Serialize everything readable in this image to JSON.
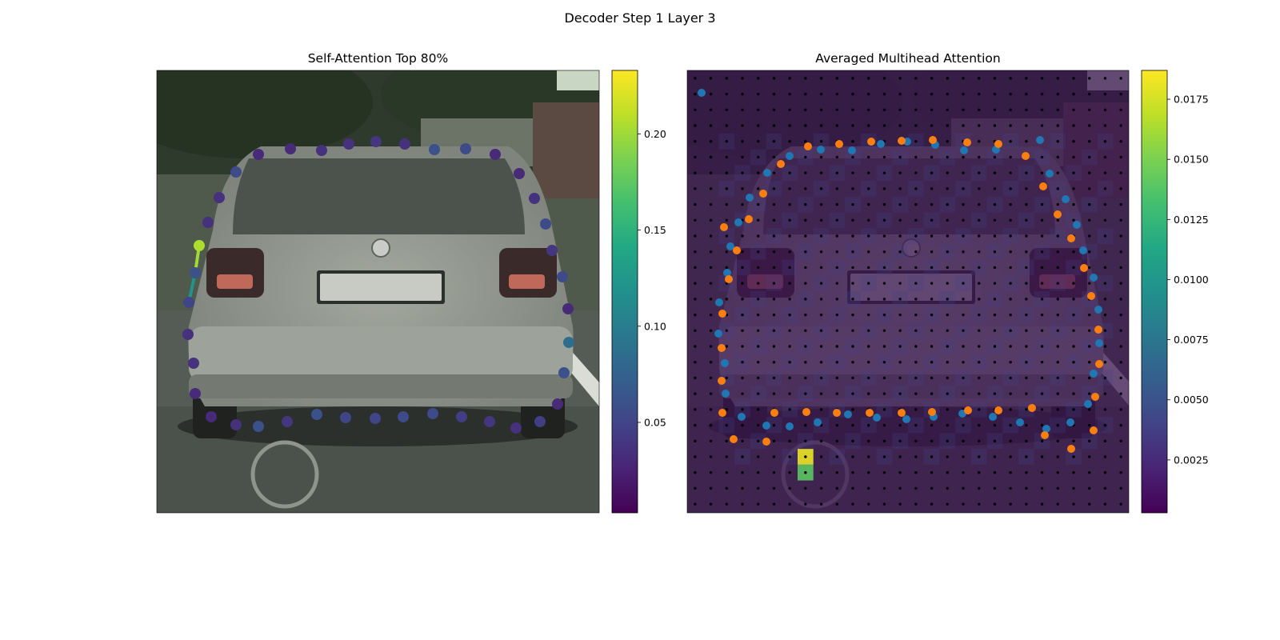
{
  "figure": {
    "title": "Decoder Step 1 Layer 3"
  },
  "chart_data": [
    {
      "type": "scatter",
      "title": "Self-Attention Top 80%",
      "background": "street photo of a silver hatchback car, rear view",
      "grid": false,
      "colormap": "viridis",
      "colorbar": {
        "ticks": [
          0.05,
          0.1,
          0.15,
          0.2
        ],
        "tick_labels": [
          "0.05",
          "0.10",
          "0.15",
          "0.20"
        ],
        "range": [
          0.003,
          0.233
        ]
      },
      "points_note": "polygon contour points colored by attention weight",
      "points": [
        {
          "x": 249,
          "y": 307,
          "v": 0.205
        },
        {
          "x": 244,
          "y": 341,
          "v": 0.06
        },
        {
          "x": 236,
          "y": 378,
          "v": 0.05
        },
        {
          "x": 235,
          "y": 418,
          "v": 0.035
        },
        {
          "x": 242,
          "y": 454,
          "v": 0.035
        },
        {
          "x": 244,
          "y": 492,
          "v": 0.03
        },
        {
          "x": 264,
          "y": 521,
          "v": 0.03
        },
        {
          "x": 295,
          "y": 531,
          "v": 0.035
        },
        {
          "x": 323,
          "y": 533,
          "v": 0.06
        },
        {
          "x": 359,
          "y": 527,
          "v": 0.04
        },
        {
          "x": 396,
          "y": 518,
          "v": 0.06
        },
        {
          "x": 432,
          "y": 522,
          "v": 0.05
        },
        {
          "x": 469,
          "y": 523,
          "v": 0.05
        },
        {
          "x": 504,
          "y": 521,
          "v": 0.055
        },
        {
          "x": 541,
          "y": 517,
          "v": 0.055
        },
        {
          "x": 577,
          "y": 521,
          "v": 0.045
        },
        {
          "x": 612,
          "y": 527,
          "v": 0.04
        },
        {
          "x": 645,
          "y": 535,
          "v": 0.035
        },
        {
          "x": 675,
          "y": 527,
          "v": 0.045
        },
        {
          "x": 697,
          "y": 505,
          "v": 0.03
        },
        {
          "x": 705,
          "y": 466,
          "v": 0.06
        },
        {
          "x": 711,
          "y": 428,
          "v": 0.085
        },
        {
          "x": 710,
          "y": 386,
          "v": 0.03
        },
        {
          "x": 703,
          "y": 346,
          "v": 0.055
        },
        {
          "x": 690,
          "y": 313,
          "v": 0.04
        },
        {
          "x": 682,
          "y": 280,
          "v": 0.055
        },
        {
          "x": 668,
          "y": 248,
          "v": 0.035
        },
        {
          "x": 649,
          "y": 217,
          "v": 0.03
        },
        {
          "x": 619,
          "y": 193,
          "v": 0.03
        },
        {
          "x": 582,
          "y": 186,
          "v": 0.055
        },
        {
          "x": 543,
          "y": 187,
          "v": 0.06
        },
        {
          "x": 506,
          "y": 180,
          "v": 0.035
        },
        {
          "x": 470,
          "y": 177,
          "v": 0.04
        },
        {
          "x": 436,
          "y": 180,
          "v": 0.035
        },
        {
          "x": 402,
          "y": 188,
          "v": 0.035
        },
        {
          "x": 363,
          "y": 186,
          "v": 0.03
        },
        {
          "x": 323,
          "y": 193,
          "v": 0.03
        },
        {
          "x": 295,
          "y": 215,
          "v": 0.055
        },
        {
          "x": 274,
          "y": 247,
          "v": 0.035
        },
        {
          "x": 260,
          "y": 278,
          "v": 0.035
        }
      ],
      "attention_links": [
        {
          "from": [
            249,
            307
          ],
          "to": [
            244,
            341
          ],
          "v": 0.2
        },
        {
          "from": [
            244,
            341
          ],
          "to": [
            236,
            378
          ],
          "v": 0.12
        }
      ]
    },
    {
      "type": "heatmap",
      "title": "Averaged Multihead Attention",
      "background": "street photo of a silver hatchback car, rear view (darkened)",
      "grid": false,
      "colormap": "viridis",
      "colorbar": {
        "ticks": [
          0.0025,
          0.005,
          0.0075,
          0.01,
          0.0125,
          0.015,
          0.0175
        ],
        "tick_labels": [
          "0.0025",
          "0.0050",
          "0.0075",
          "0.0100",
          "0.0125",
          "0.0150",
          "0.0175"
        ],
        "range": [
          0.0003,
          0.0187
        ]
      },
      "hot_cells": [
        {
          "col": 7,
          "row": 24,
          "v": 0.0182
        },
        {
          "col": 7,
          "row": 25,
          "v": 0.014
        }
      ],
      "grid_dots": "28x28 sampling grid",
      "series": [
        {
          "color": "#1f77b4",
          "points": [
            [
              877,
              116
            ],
            [
              987,
              195
            ],
            [
              1026,
              187
            ],
            [
              1065,
              188
            ],
            [
              1101,
              180
            ],
            [
              1134,
              177
            ],
            [
              1169,
              181
            ],
            [
              1205,
              188
            ],
            [
              1245,
              187
            ],
            [
              1300,
              175
            ],
            [
              1312,
              217
            ],
            [
              1332,
              249
            ],
            [
              1346,
              281
            ],
            [
              1354,
              313
            ],
            [
              1367,
              347
            ],
            [
              1373,
              387
            ],
            [
              1374,
              429
            ],
            [
              1367,
              467
            ],
            [
              1360,
              505
            ],
            [
              1338,
              528
            ],
            [
              1308,
              536
            ],
            [
              1275,
              528
            ],
            [
              1241,
              521
            ],
            [
              1203,
              517
            ],
            [
              1167,
              521
            ],
            [
              1133,
              524
            ],
            [
              1096,
              522
            ],
            [
              1060,
              518
            ],
            [
              1022,
              528
            ],
            [
              987,
              533
            ],
            [
              958,
              532
            ],
            [
              927,
              521
            ],
            [
              907,
              492
            ],
            [
              906,
              454
            ],
            [
              898,
              417
            ],
            [
              899,
              378
            ],
            [
              909,
              341
            ],
            [
              913,
              308
            ],
            [
              923,
              278
            ],
            [
              937,
              247
            ],
            [
              959,
              216
            ]
          ]
        },
        {
          "color": "#ff7f0e",
          "points": [
            [
              1010,
              183
            ],
            [
              1049,
              180
            ],
            [
              1089,
              177
            ],
            [
              1127,
              176
            ],
            [
              1166,
              175
            ],
            [
              1209,
              178
            ],
            [
              1248,
              180
            ],
            [
              1282,
              195
            ],
            [
              1304,
              233
            ],
            [
              1322,
              268
            ],
            [
              1339,
              298
            ],
            [
              1355,
              335
            ],
            [
              1364,
              370
            ],
            [
              1373,
              412
            ],
            [
              1374,
              455
            ],
            [
              1369,
              496
            ],
            [
              1367,
              538
            ],
            [
              1339,
              561
            ],
            [
              1306,
              544
            ],
            [
              1290,
              510
            ],
            [
              1248,
              513
            ],
            [
              1210,
              513
            ],
            [
              1165,
              515
            ],
            [
              1127,
              516
            ],
            [
              1087,
              516
            ],
            [
              1046,
              516
            ],
            [
              1008,
              515
            ],
            [
              968,
              516
            ],
            [
              958,
              552
            ],
            [
              917,
              549
            ],
            [
              903,
              516
            ],
            [
              902,
              476
            ],
            [
              902,
              435
            ],
            [
              903,
              392
            ],
            [
              911,
              349
            ],
            [
              921,
              313
            ],
            [
              905,
              284
            ],
            [
              936,
              274
            ],
            [
              954,
              242
            ],
            [
              976,
              205
            ]
          ]
        }
      ]
    }
  ]
}
